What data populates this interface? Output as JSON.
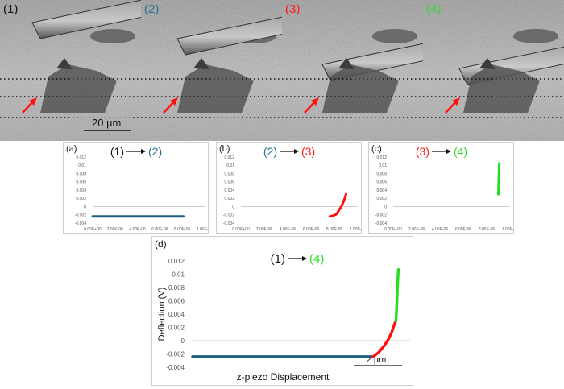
{
  "colors": {
    "c1": "#111111",
    "c2": "#2a6f8f",
    "c3": "#ff1a1a",
    "c4": "#33dd33",
    "steel": "#1f5f7f",
    "red": "#ff1010",
    "green": "#22dd22"
  },
  "sem": {
    "frames": [
      {
        "label": "(1)",
        "color_key": "c1"
      },
      {
        "label": "(2)",
        "color_key": "c2"
      },
      {
        "label": "(3)",
        "color_key": "c3"
      },
      {
        "label": "(4)",
        "color_key": "c4"
      }
    ],
    "scale_bar": "20 µm"
  },
  "chart_data": [
    {
      "type": "line",
      "panel": "(a)",
      "title_from": "(1)",
      "title_from_color": "c1",
      "title_to": "(2)",
      "title_to_color": "c2",
      "yticks": [
        "0.012",
        "0.01",
        "0.008",
        "0.006",
        "0.004",
        "0.002",
        "0",
        "-0.002",
        "-0.004"
      ],
      "ytick_values": [
        0.012,
        0.01,
        0.008,
        0.006,
        0.004,
        0.002,
        0,
        -0.002,
        -0.004
      ],
      "xticks": [
        "0.00E+00",
        "2.00E-06",
        "4.00E-06",
        "6.00E-06",
        "8.00E-06",
        "1.00E-05"
      ],
      "xtick_values": [
        0,
        2e-06,
        4e-06,
        6e-06,
        8e-06,
        1e-05
      ],
      "xlim": [
        0,
        1e-05
      ],
      "ylim": [
        -0.004,
        0.012
      ],
      "series": [
        {
          "color": "steel",
          "x": [
            0,
            2e-06,
            4e-06,
            6e-06,
            8.1e-06
          ],
          "y": [
            -0.0024,
            -0.0024,
            -0.0024,
            -0.0024,
            -0.0024
          ]
        }
      ]
    },
    {
      "type": "line",
      "panel": "(b)",
      "title_from": "(2)",
      "title_from_color": "c2",
      "title_to": "(3)",
      "title_to_color": "c3",
      "yticks": [
        "0.012",
        "0.01",
        "0.008",
        "0.006",
        "0.004",
        "0.002",
        "0",
        "-0.002",
        "-0.004"
      ],
      "ytick_values": [
        0.012,
        0.01,
        0.008,
        0.006,
        0.004,
        0.002,
        0,
        -0.002,
        -0.004
      ],
      "xticks": [
        "0.00E+00",
        "2.00E-06",
        "4.00E-06",
        "6.00E-06",
        "8.00E-06",
        "1.00E-05"
      ],
      "xtick_values": [
        0,
        2e-06,
        4e-06,
        6e-06,
        8e-06,
        1e-05
      ],
      "xlim": [
        0,
        1e-05
      ],
      "ylim": [
        -0.004,
        0.012
      ],
      "series": [
        {
          "color": "red",
          "x": [
            7.6e-06,
            7.9e-06,
            8.2e-06,
            8.4e-06,
            8.6e-06,
            8.8e-06,
            9e-06
          ],
          "y": [
            -0.0024,
            -0.0022,
            -0.0018,
            -0.0008,
            0.0,
            0.0013,
            0.003
          ]
        }
      ]
    },
    {
      "type": "line",
      "panel": "(c)",
      "title_from": "(3)",
      "title_from_color": "c3",
      "title_to": "(4)",
      "title_to_color": "c4",
      "yticks": [
        "0.012",
        "0.01",
        "0.008",
        "0.006",
        "0.004",
        "0.002",
        "0",
        "-0.002",
        "-0.004"
      ],
      "ytick_values": [
        0.012,
        0.01,
        0.008,
        0.006,
        0.004,
        0.002,
        0,
        -0.002,
        -0.004
      ],
      "xticks": [
        "0.00E+00",
        "2.00E-06",
        "4.00E-06",
        "6.00E-06",
        "8.00E-06",
        "1.00E-05"
      ],
      "xtick_values": [
        0,
        2e-06,
        4e-06,
        6e-06,
        8e-06,
        1e-05
      ],
      "xlim": [
        0,
        1e-05
      ],
      "ylim": [
        -0.004,
        0.012
      ],
      "series": [
        {
          "color": "green",
          "x": [
            9e-06,
            9.02e-06,
            9.05e-06,
            9.08e-06
          ],
          "y": [
            0.003,
            0.005,
            0.008,
            0.0105
          ]
        }
      ]
    },
    {
      "type": "line",
      "panel": "(d)",
      "title_from": "(1)",
      "title_from_color": "c1",
      "title_to": "(4)",
      "title_to_color": "c4",
      "ylabel": "Deflection (V)",
      "xlabel": "z-piezo Displacement",
      "scale_label": "2 µm",
      "yticks": [
        "0.012",
        "0.01",
        "0.008",
        "0.006",
        "0.004",
        "0.002",
        "0",
        "-0.002",
        "-0.004"
      ],
      "ytick_values": [
        0.012,
        0.01,
        0.008,
        0.006,
        0.004,
        0.002,
        0,
        -0.002,
        -0.004
      ],
      "ylim": [
        -0.004,
        0.012
      ],
      "xlim": [
        0,
        1e-05
      ],
      "series": [
        {
          "color": "steel",
          "x": [
            0,
            2e-06,
            4e-06,
            6e-06,
            8e-06,
            8.3e-06
          ],
          "y": [
            -0.0024,
            -0.0024,
            -0.0024,
            -0.0024,
            -0.0024,
            -0.0024
          ]
        },
        {
          "color": "red",
          "x": [
            8.3e-06,
            8.55e-06,
            8.8e-06,
            9e-06,
            9.15e-06,
            9.25e-06,
            9.35e-06
          ],
          "y": [
            -0.0024,
            -0.0018,
            -0.0008,
            0.0002,
            0.0012,
            0.0022,
            0.003
          ]
        },
        {
          "color": "green",
          "x": [
            9.35e-06,
            9.38e-06,
            9.42e-06,
            9.46e-06
          ],
          "y": [
            0.003,
            0.005,
            0.008,
            0.0107
          ]
        }
      ]
    }
  ]
}
